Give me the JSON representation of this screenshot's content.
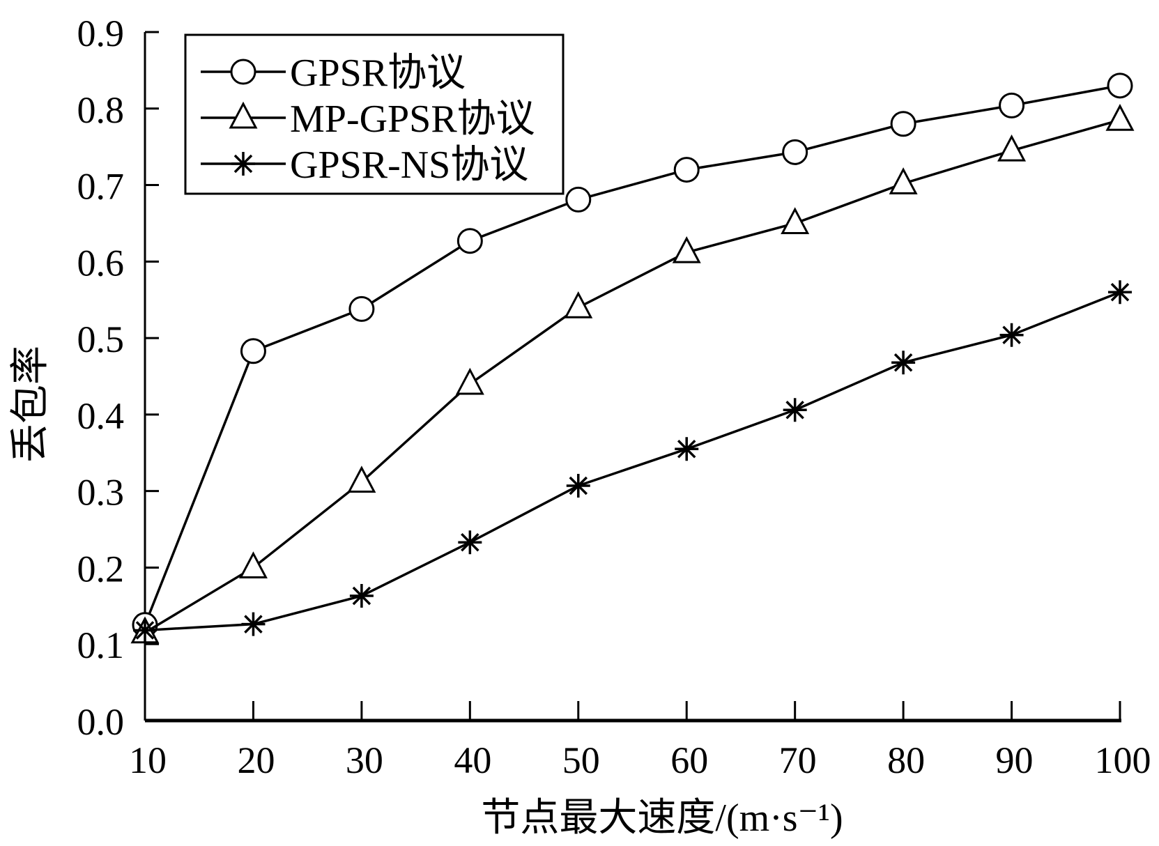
{
  "chart_data": {
    "type": "line",
    "xlabel": "节点最大速度/(m·s⁻¹)",
    "ylabel": "丢包率",
    "x": [
      10,
      20,
      30,
      40,
      50,
      60,
      70,
      80,
      90,
      100
    ],
    "xticks": [
      "10",
      "20",
      "30",
      "40",
      "50",
      "60",
      "70",
      "80",
      "90",
      "100"
    ],
    "yticks": [
      "0.0",
      "0.1",
      "0.2",
      "0.3",
      "0.4",
      "0.5",
      "0.6",
      "0.7",
      "0.8",
      "0.9"
    ],
    "xlim": [
      10,
      100
    ],
    "ylim": [
      0,
      0.9
    ],
    "grid": false,
    "legend_position": "top-left",
    "series": [
      {
        "name": "GPSR协议",
        "marker": "circle",
        "values": [
          0.125,
          0.483,
          0.538,
          0.627,
          0.681,
          0.72,
          0.743,
          0.78,
          0.804,
          0.83
        ]
      },
      {
        "name": "MP-GPSR协议",
        "marker": "triangle",
        "values": [
          0.115,
          0.2,
          0.312,
          0.44,
          0.54,
          0.612,
          0.65,
          0.702,
          0.745,
          0.785
        ]
      },
      {
        "name": "GPSR-NS协议",
        "marker": "asterisk",
        "values": [
          0.118,
          0.126,
          0.163,
          0.233,
          0.307,
          0.355,
          0.406,
          0.468,
          0.504,
          0.56
        ]
      }
    ],
    "color": "#000000"
  }
}
